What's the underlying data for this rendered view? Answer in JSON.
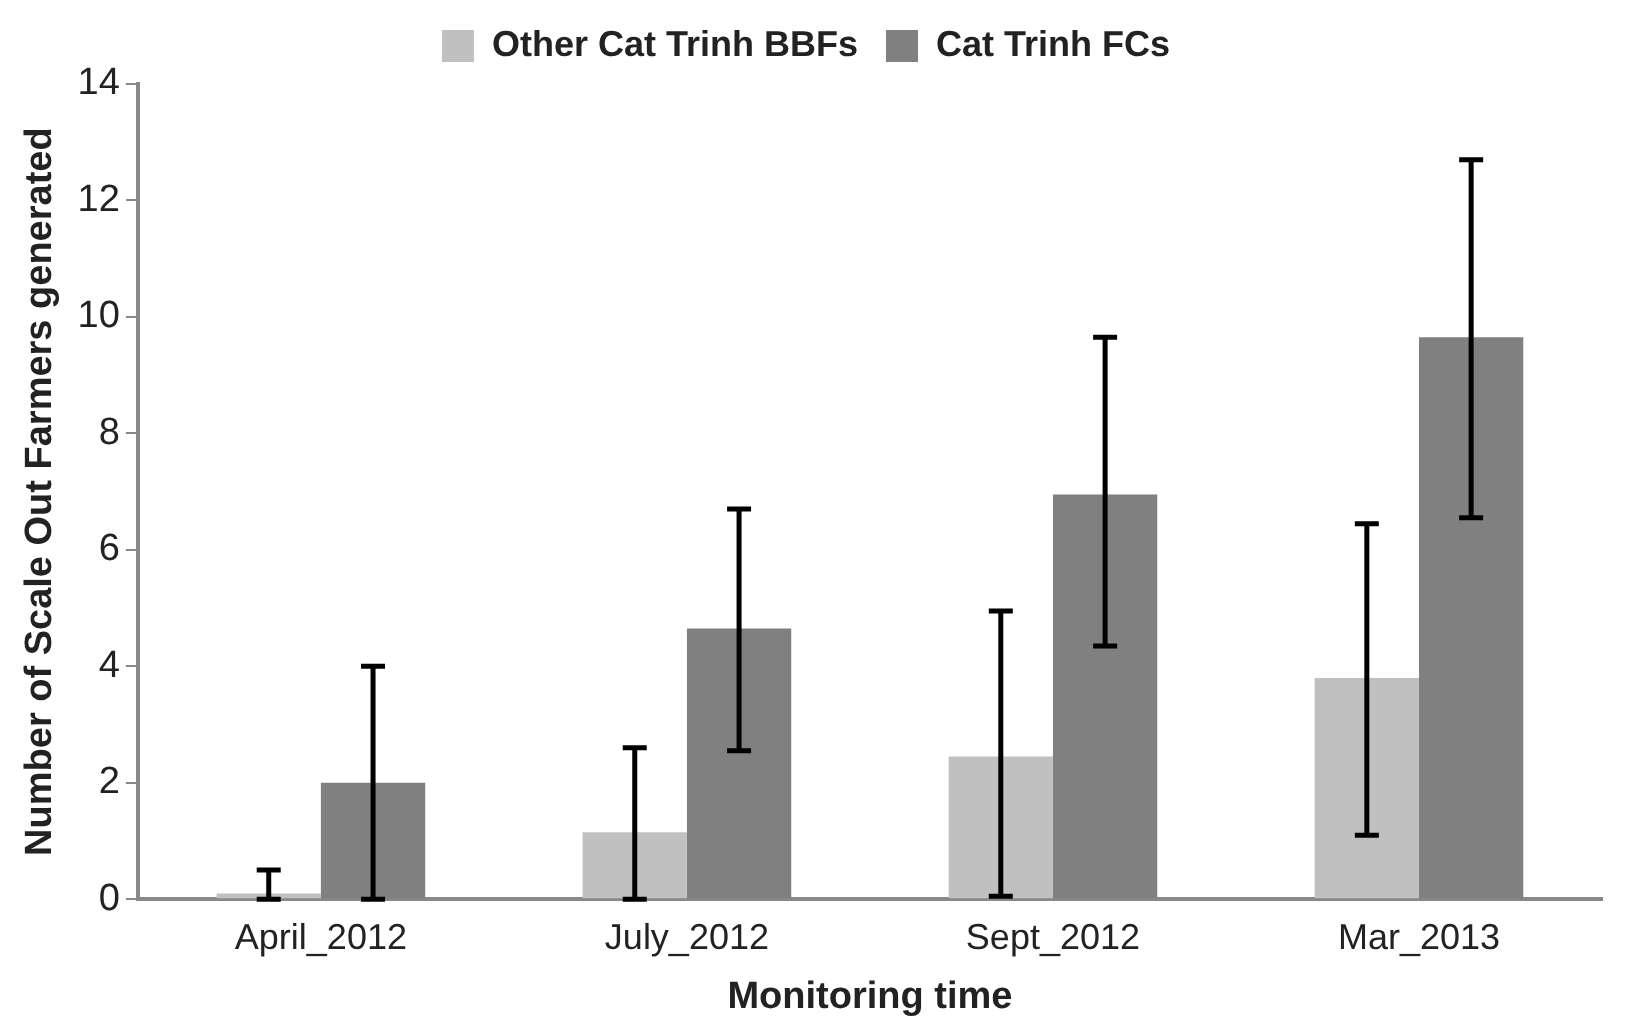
{
  "chart_data": {
    "type": "bar",
    "xlabel": "Monitoring time",
    "ylabel": "Number of Scale Out Farmers generated",
    "categories": [
      "April_2012",
      "July_2012",
      "Sept_2012",
      "Mar_2013"
    ],
    "series": [
      {
        "name": "Other Cat Trinh BBFs",
        "color": "#c0c0c0",
        "values": [
          0.1,
          1.15,
          2.45,
          3.8
        ],
        "errors": [
          [
            0,
            0.5
          ],
          [
            0,
            2.6
          ],
          [
            0.05,
            4.95
          ],
          [
            1.1,
            6.45
          ]
        ]
      },
      {
        "name": "Cat Trinh FCs",
        "color": "#808080",
        "values": [
          2.0,
          4.65,
          6.95,
          9.65
        ],
        "errors": [
          [
            0,
            4.0
          ],
          [
            2.55,
            6.7
          ],
          [
            4.35,
            9.65
          ],
          [
            6.55,
            12.7
          ]
        ]
      }
    ],
    "ylim": [
      0,
      14
    ],
    "yticks": [
      0,
      2,
      4,
      6,
      8,
      10,
      12,
      14
    ],
    "grid": false,
    "legend": "top"
  }
}
